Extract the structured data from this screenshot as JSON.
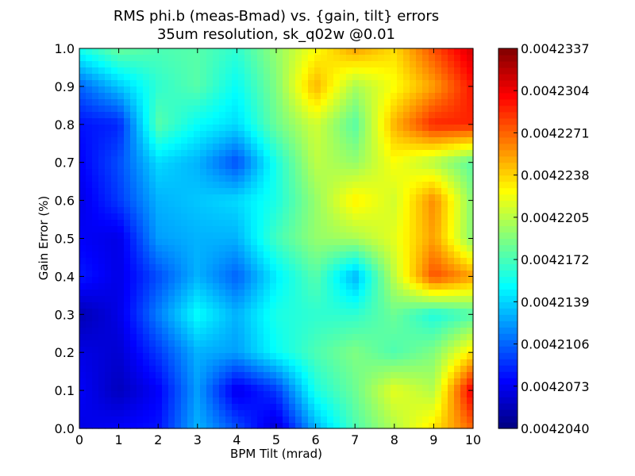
{
  "chart_data": {
    "type": "heatmap",
    "title_line1": "RMS phi.b (meas-Bmad) vs. {gain, tilt} errors",
    "title_line2": "35um resolution, sk_q02w @0.01",
    "xlabel": "BPM Tilt (mrad)",
    "ylabel": "Gain Error (%)",
    "xlim": [
      0,
      10
    ],
    "ylim": [
      0,
      1.0
    ],
    "x": [
      0,
      1,
      2,
      3,
      4,
      5,
      6,
      7,
      8,
      9,
      10
    ],
    "y": [
      0.0,
      0.1,
      0.2,
      0.3,
      0.4,
      0.5,
      0.6,
      0.7,
      0.8,
      0.9,
      1.0
    ],
    "x_tick_labels": [
      "0",
      "1",
      "2",
      "3",
      "4",
      "5",
      "6",
      "7",
      "8",
      "9",
      "10"
    ],
    "y_tick_labels": [
      "0.0",
      "0.1",
      "0.2",
      "0.3",
      "0.4",
      "0.5",
      "0.6",
      "0.7",
      "0.8",
      "0.9",
      "1.0"
    ],
    "colorbar": {
      "min": 0.004204,
      "max": 0.0042337,
      "tick_values": [
        0.004204,
        0.0042073,
        0.0042106,
        0.0042139,
        0.0042172,
        0.0042205,
        0.0042238,
        0.0042271,
        0.0042304,
        0.0042337
      ],
      "tick_labels": [
        "0.0042040",
        "0.0042073",
        "0.0042106",
        "0.0042139",
        "0.0042172",
        "0.0042205",
        "0.0042238",
        "0.0042271",
        "0.0042304",
        "0.0042337"
      ]
    },
    "z_norm": [
      [
        0.1,
        0.12,
        0.14,
        0.3,
        0.2,
        0.08,
        0.3,
        0.45,
        0.55,
        0.65,
        0.78
      ],
      [
        0.12,
        0.06,
        0.12,
        0.28,
        0.1,
        0.18,
        0.4,
        0.48,
        0.6,
        0.55,
        0.9
      ],
      [
        0.1,
        0.08,
        0.18,
        0.3,
        0.28,
        0.38,
        0.45,
        0.5,
        0.45,
        0.5,
        0.65
      ],
      [
        0.05,
        0.1,
        0.25,
        0.38,
        0.3,
        0.4,
        0.42,
        0.42,
        0.48,
        0.4,
        0.45
      ],
      [
        0.15,
        0.1,
        0.2,
        0.3,
        0.22,
        0.36,
        0.46,
        0.3,
        0.56,
        0.8,
        0.72
      ],
      [
        0.12,
        0.1,
        0.28,
        0.3,
        0.3,
        0.44,
        0.52,
        0.54,
        0.6,
        0.72,
        0.5
      ],
      [
        0.1,
        0.18,
        0.3,
        0.32,
        0.34,
        0.4,
        0.52,
        0.64,
        0.58,
        0.74,
        0.5
      ],
      [
        0.12,
        0.2,
        0.34,
        0.3,
        0.2,
        0.4,
        0.56,
        0.52,
        0.62,
        0.55,
        0.46
      ],
      [
        0.14,
        0.16,
        0.46,
        0.38,
        0.34,
        0.48,
        0.58,
        0.46,
        0.7,
        0.84,
        0.84
      ],
      [
        0.22,
        0.32,
        0.42,
        0.46,
        0.38,
        0.5,
        0.7,
        0.54,
        0.62,
        0.72,
        0.86
      ],
      [
        0.4,
        0.48,
        0.45,
        0.46,
        0.42,
        0.52,
        0.62,
        0.72,
        0.66,
        0.8,
        0.92
      ]
    ]
  }
}
